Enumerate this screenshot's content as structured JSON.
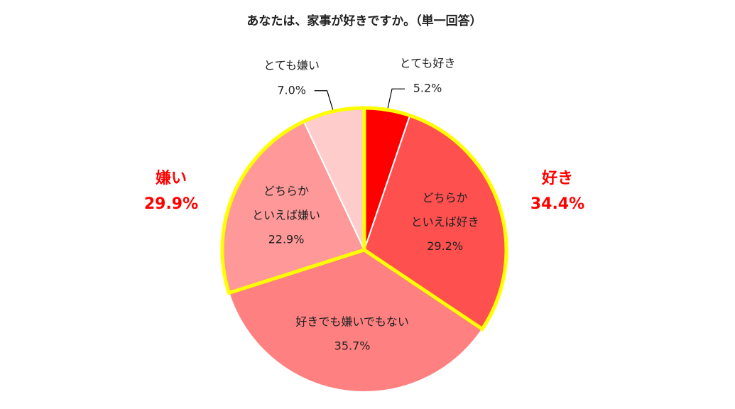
{
  "chart_data": {
    "type": "pie",
    "title": "あなたは、家事が好きですか。（単一回答）",
    "categories": [
      [
        "とても好き"
      ],
      [
        "どちらか",
        "といえば好き"
      ],
      [
        "好きでも嫌いでもない"
      ],
      [
        "どちらか",
        "といえば嫌い"
      ],
      [
        "とても嫌い"
      ]
    ],
    "values": [
      5.2,
      29.2,
      35.7,
      22.9,
      7.0
    ],
    "value_labels": [
      "5.2%",
      "29.2%",
      "35.7%",
      "22.9%",
      "7.0%"
    ],
    "colors": [
      "#ff0000",
      "#ff5050",
      "#ff8080",
      "#ff9999",
      "#ffcccc"
    ],
    "outside_labels": [
      0,
      4
    ],
    "groups": [
      {
        "label": "好き",
        "value": 34.4,
        "value_label": "34.4%",
        "segments": [
          0,
          1
        ],
        "color": "#ff0000"
      },
      {
        "label": "嫌い",
        "value": 29.9,
        "value_label": "29.9%",
        "segments": [
          3,
          4
        ],
        "color": "#ff0000"
      }
    ],
    "group_outline_color": "#ffff00"
  }
}
